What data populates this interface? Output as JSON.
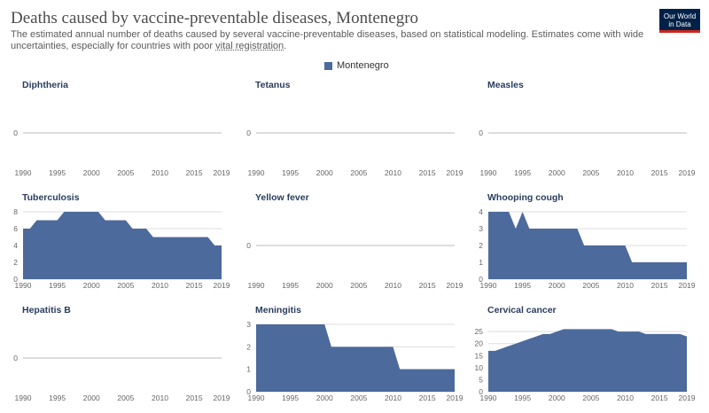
{
  "header": {
    "title": "Deaths caused by vaccine-preventable diseases, Montenegro",
    "subtitle_main": "The estimated annual number of deaths caused by several vaccine-preventable diseases, based on statistical modeling. Estimates come with wide uncertainties, especially for countries with poor ",
    "subtitle_link": "vital registration",
    "subtitle_end": ".",
    "logo_line1": "Our World",
    "logo_line2": "in Data"
  },
  "legend": {
    "label": "Montenegro",
    "color": "#4c6a9c"
  },
  "colors": {
    "area": "#4c6a9c",
    "grid": "#dddddd",
    "zero_line": "#bbbbbb"
  },
  "chart_data": [
    {
      "type": "area",
      "title": "Diphtheria",
      "x_ticks": [
        1990,
        1995,
        2000,
        2005,
        2010,
        2015,
        2019
      ],
      "y_ticks": [
        0
      ],
      "x": [
        1990,
        2019
      ],
      "values": [
        0,
        0
      ]
    },
    {
      "type": "area",
      "title": "Tetanus",
      "x_ticks": [
        1990,
        1995,
        2000,
        2005,
        2010,
        2015,
        2019
      ],
      "y_ticks": [
        0
      ],
      "x": [
        1990,
        2019
      ],
      "values": [
        0,
        0
      ]
    },
    {
      "type": "area",
      "title": "Measles",
      "x_ticks": [
        1990,
        1995,
        2000,
        2005,
        2010,
        2015,
        2019
      ],
      "y_ticks": [
        0
      ],
      "x": [
        1990,
        2019
      ],
      "values": [
        0,
        0
      ]
    },
    {
      "type": "area",
      "title": "Tuberculosis",
      "x_ticks": [
        1990,
        1995,
        2000,
        2005,
        2010,
        2015,
        2019
      ],
      "y_ticks": [
        0,
        2,
        4,
        6,
        8
      ],
      "ylim": [
        0,
        8
      ],
      "x": [
        1990,
        1991,
        1992,
        1993,
        1994,
        1995,
        1996,
        1997,
        1998,
        1999,
        2000,
        2001,
        2002,
        2003,
        2004,
        2005,
        2006,
        2007,
        2008,
        2009,
        2010,
        2011,
        2012,
        2013,
        2014,
        2015,
        2016,
        2017,
        2018,
        2019
      ],
      "values": [
        6,
        6,
        7,
        7,
        7,
        7,
        8,
        8,
        8,
        8,
        8,
        8,
        7,
        7,
        7,
        7,
        6,
        6,
        6,
        5,
        5,
        5,
        5,
        5,
        5,
        5,
        5,
        5,
        4,
        4
      ]
    },
    {
      "type": "area",
      "title": "Yellow fever",
      "x_ticks": [
        1990,
        1995,
        2000,
        2005,
        2010,
        2015,
        2019
      ],
      "y_ticks": [
        0
      ],
      "x": [
        1990,
        2019
      ],
      "values": [
        0,
        0
      ]
    },
    {
      "type": "area",
      "title": "Whooping cough",
      "x_ticks": [
        1990,
        1995,
        2000,
        2005,
        2010,
        2015,
        2019
      ],
      "y_ticks": [
        0,
        1,
        2,
        3,
        4
      ],
      "ylim": [
        0,
        4
      ],
      "x": [
        1990,
        1991,
        1992,
        1993,
        1994,
        1995,
        1996,
        1997,
        1998,
        1999,
        2000,
        2001,
        2002,
        2003,
        2004,
        2005,
        2006,
        2007,
        2008,
        2009,
        2010,
        2011,
        2012,
        2013,
        2014,
        2015,
        2016,
        2017,
        2018,
        2019
      ],
      "values": [
        4,
        4,
        4,
        4,
        3,
        4,
        3,
        3,
        3,
        3,
        3,
        3,
        3,
        3,
        2,
        2,
        2,
        2,
        2,
        2,
        2,
        1,
        1,
        1,
        1,
        1,
        1,
        1,
        1,
        1
      ]
    },
    {
      "type": "area",
      "title": "Hepatitis B",
      "x_ticks": [
        1990,
        1995,
        2000,
        2005,
        2010,
        2015,
        2019
      ],
      "y_ticks": [
        0
      ],
      "x": [
        1990,
        2019
      ],
      "values": [
        0,
        0
      ]
    },
    {
      "type": "area",
      "title": "Meningitis",
      "x_ticks": [
        1990,
        1995,
        2000,
        2005,
        2010,
        2015,
        2019
      ],
      "y_ticks": [
        0,
        1,
        2,
        3
      ],
      "ylim": [
        0,
        3
      ],
      "x": [
        1990,
        1991,
        1992,
        1993,
        1994,
        1995,
        1996,
        1997,
        1998,
        1999,
        2000,
        2001,
        2002,
        2003,
        2004,
        2005,
        2006,
        2007,
        2008,
        2009,
        2010,
        2011,
        2012,
        2013,
        2014,
        2015,
        2016,
        2017,
        2018,
        2019
      ],
      "values": [
        3,
        3,
        3,
        3,
        3,
        3,
        3,
        3,
        3,
        3,
        3,
        2,
        2,
        2,
        2,
        2,
        2,
        2,
        2,
        2,
        2,
        1,
        1,
        1,
        1,
        1,
        1,
        1,
        1,
        1
      ]
    },
    {
      "type": "area",
      "title": "Cervical cancer",
      "x_ticks": [
        1990,
        1995,
        2000,
        2005,
        2010,
        2015,
        2019
      ],
      "y_ticks": [
        0,
        5,
        10,
        15,
        20,
        25
      ],
      "ylim": [
        0,
        28
      ],
      "x": [
        1990,
        1991,
        1992,
        1993,
        1994,
        1995,
        1996,
        1997,
        1998,
        1999,
        2000,
        2001,
        2002,
        2003,
        2004,
        2005,
        2006,
        2007,
        2008,
        2009,
        2010,
        2011,
        2012,
        2013,
        2014,
        2015,
        2016,
        2017,
        2018,
        2019
      ],
      "values": [
        17,
        17,
        18,
        19,
        20,
        21,
        22,
        23,
        24,
        24,
        25,
        26,
        26,
        26,
        26,
        26,
        26,
        26,
        26,
        25,
        25,
        25,
        25,
        24,
        24,
        24,
        24,
        24,
        24,
        23
      ]
    }
  ]
}
